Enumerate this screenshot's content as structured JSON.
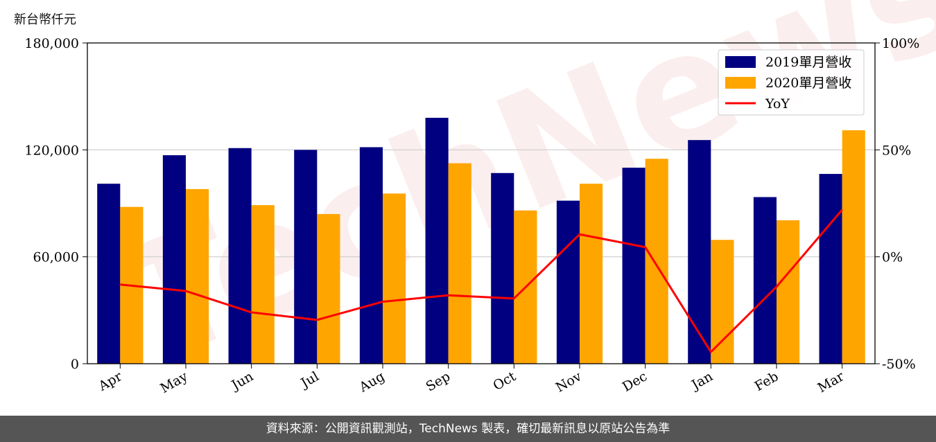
{
  "unit_label": "新台幣仟元",
  "watermark": "TechNews",
  "footer_text": "資料來源：公開資訊觀測站，TechNews 製表，確切最新訊息以原站公告為準",
  "colors": {
    "series2019": "#000080",
    "series2020": "#FFA500",
    "yoy": "#FF0000"
  },
  "chart_data": {
    "type": "bar",
    "categories": [
      "Apr",
      "May",
      "Jun",
      "Jul",
      "Aug",
      "Sep",
      "Oct",
      "Nov",
      "Dec",
      "Jan",
      "Feb",
      "Mar"
    ],
    "series": [
      {
        "name": "2019單月營收",
        "values": [
          101000,
          117000,
          121000,
          120000,
          121500,
          138000,
          107000,
          91500,
          110000,
          125500,
          93500,
          106500
        ]
      },
      {
        "name": "2020單月營收",
        "values": [
          88000,
          98000,
          89000,
          84000,
          95500,
          112500,
          86000,
          101000,
          115000,
          69500,
          80500,
          131000
        ]
      }
    ],
    "line_series": {
      "name": "YoY",
      "axis": "right",
      "values": [
        -13,
        -16,
        -26,
        -29.5,
        -21,
        -18,
        -19.5,
        10.5,
        4.5,
        -44.5,
        -14,
        22
      ]
    },
    "ylim": [
      0,
      180000
    ],
    "yticks": [
      "0",
      "60,000",
      "120,000",
      "180,000"
    ],
    "y2lim": [
      -50,
      100
    ],
    "y2ticks": [
      "-50%",
      "0%",
      "50%",
      "100%"
    ],
    "grid": "horizontal",
    "legend_position": "top-right"
  }
}
